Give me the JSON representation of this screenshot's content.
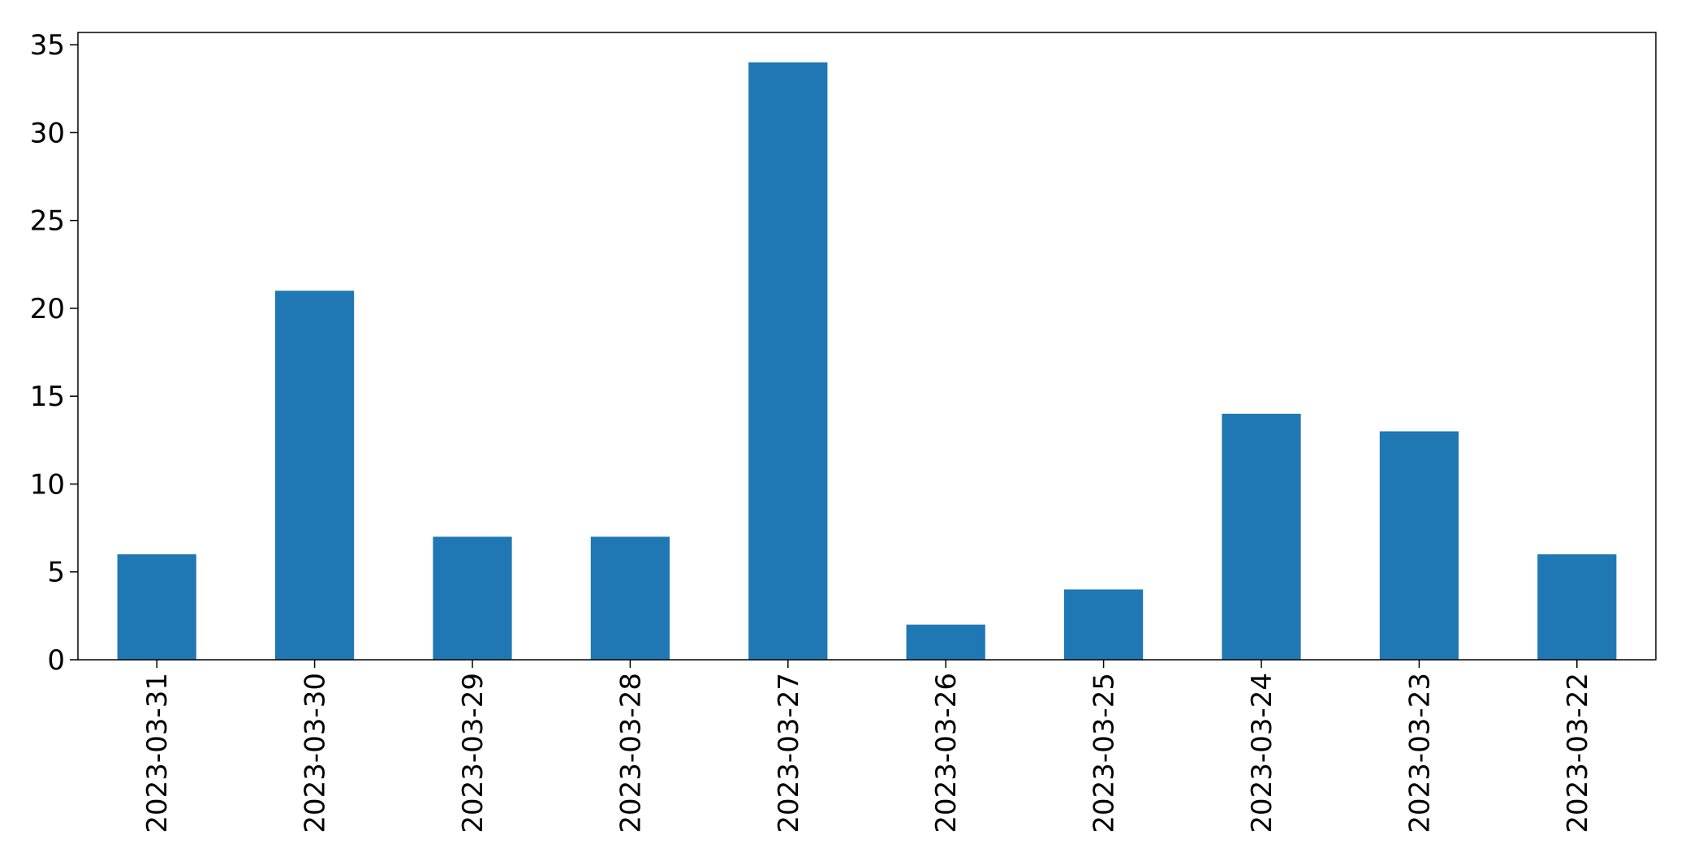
{
  "chart_data": {
    "type": "bar",
    "title": "",
    "xlabel": "",
    "ylabel": "",
    "categories": [
      "2023-03-31",
      "2023-03-30",
      "2023-03-29",
      "2023-03-28",
      "2023-03-27",
      "2023-03-26",
      "2023-03-25",
      "2023-03-24",
      "2023-03-23",
      "2023-03-22"
    ],
    "values": [
      6,
      21,
      7,
      7,
      34,
      2,
      4,
      14,
      13,
      6
    ],
    "ylim": [
      0,
      35.7
    ],
    "yticks": [
      0,
      5,
      10,
      15,
      20,
      25,
      30,
      35
    ],
    "bar_color": "#1f77b4",
    "grid": false,
    "legend": "none"
  }
}
